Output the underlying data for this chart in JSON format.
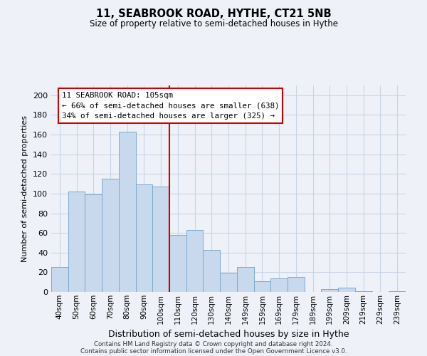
{
  "title": "11, SEABROOK ROAD, HYTHE, CT21 5NB",
  "subtitle": "Size of property relative to semi-detached houses in Hythe",
  "xlabel": "Distribution of semi-detached houses by size in Hythe",
  "ylabel": "Number of semi-detached properties",
  "bar_labels": [
    "40sqm",
    "50sqm",
    "60sqm",
    "70sqm",
    "80sqm",
    "90sqm",
    "100sqm",
    "110sqm",
    "120sqm",
    "130sqm",
    "140sqm",
    "149sqm",
    "159sqm",
    "169sqm",
    "179sqm",
    "189sqm",
    "199sqm",
    "209sqm",
    "219sqm",
    "229sqm",
    "239sqm"
  ],
  "bar_values": [
    25,
    102,
    99,
    115,
    163,
    109,
    107,
    58,
    63,
    43,
    19,
    25,
    11,
    14,
    15,
    0,
    3,
    4,
    1,
    0,
    1
  ],
  "bar_color": "#c8d8ed",
  "bar_edge_color": "#7aaad0",
  "vline_x": 6.5,
  "vline_color": "#cc0000",
  "annotation_title": "11 SEABROOK ROAD: 105sqm",
  "annotation_line1": "← 66% of semi-detached houses are smaller (638)",
  "annotation_line2": "34% of semi-detached houses are larger (325) →",
  "annotation_box_color": "#ffffff",
  "annotation_box_edge": "#cc0000",
  "ylim": [
    0,
    210
  ],
  "yticks": [
    0,
    20,
    40,
    60,
    80,
    100,
    120,
    140,
    160,
    180,
    200
  ],
  "footer1": "Contains HM Land Registry data © Crown copyright and database right 2024.",
  "footer2": "Contains public sector information licensed under the Open Government Licence v3.0.",
  "background_color": "#eef2f8",
  "grid_color": "#c8d4e4"
}
